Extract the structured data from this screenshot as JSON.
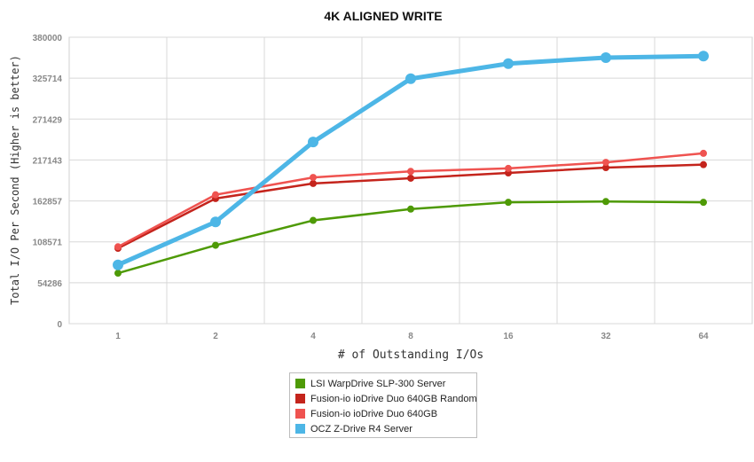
{
  "chart_data": {
    "type": "line",
    "title": "4K ALIGNED WRITE",
    "xlabel": "# of Outstanding I/Os",
    "ylabel": "Total I/O Per Second (Higher is better)",
    "categories": [
      "1",
      "2",
      "4",
      "8",
      "16",
      "32",
      "64"
    ],
    "yticks": [
      "0",
      "54286",
      "108571",
      "162857",
      "217143",
      "271429",
      "325714",
      "380000"
    ],
    "ylim": [
      0,
      380000
    ],
    "grid": true,
    "legend_position": "bottom",
    "series": [
      {
        "name": "LSI WarpDrive SLP-300 Server",
        "color": "#4e9a06",
        "values": [
          67000,
          104000,
          137000,
          152000,
          161000,
          162000,
          161000
        ]
      },
      {
        "name": "Fusion-io ioDrive Duo 640GB Random",
        "color": "#c4241c",
        "values": [
          100000,
          166000,
          186000,
          193000,
          200000,
          207000,
          211000
        ]
      },
      {
        "name": "Fusion-io ioDrive Duo 640GB",
        "color": "#ef5350",
        "values": [
          102000,
          171000,
          194000,
          202000,
          206000,
          214000,
          226000
        ]
      },
      {
        "name": "OCZ Z-Drive R4 Server",
        "color": "#4db6e6",
        "values": [
          78000,
          135000,
          241000,
          325000,
          345000,
          353000,
          355000
        ]
      }
    ]
  }
}
